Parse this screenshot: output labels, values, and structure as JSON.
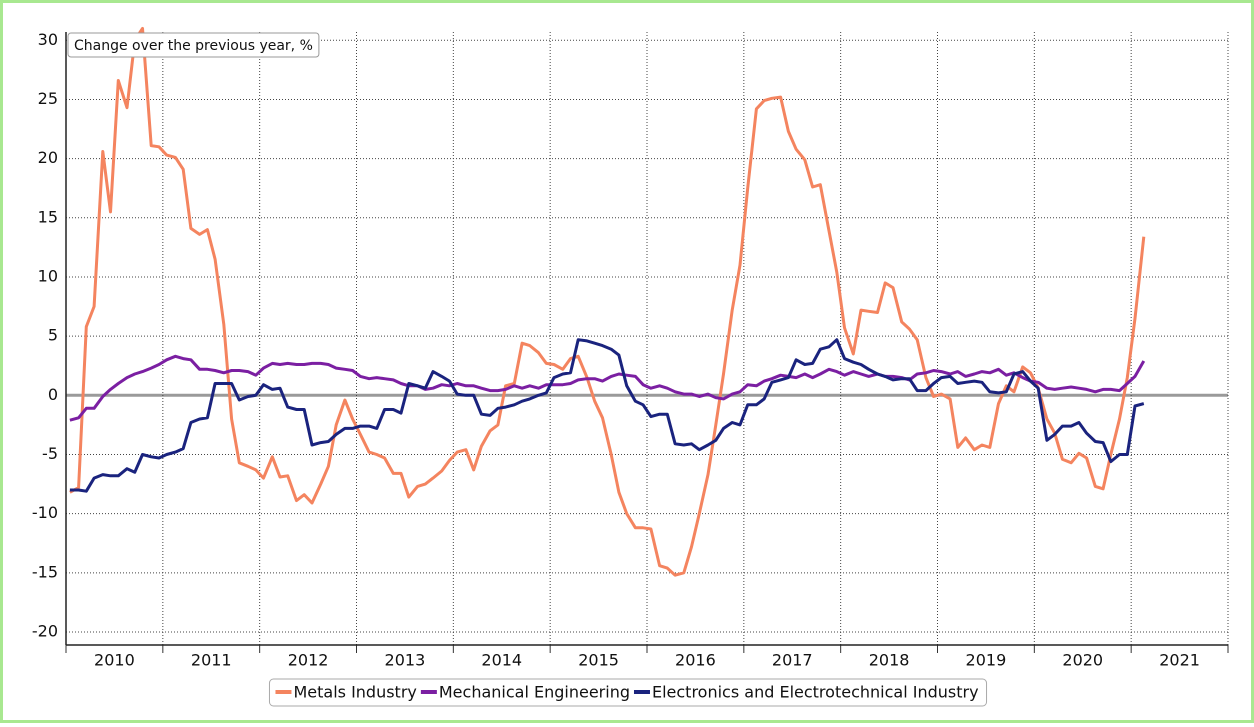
{
  "chart_data": {
    "type": "line",
    "annotation": "Change over the previous year, %",
    "categories": [
      "2010",
      "2011",
      "2012",
      "2013",
      "2014",
      "2015",
      "2016",
      "2017",
      "2018",
      "2019",
      "2020",
      "2021"
    ],
    "xlim": [
      2010,
      2022
    ],
    "xticks": [
      2010,
      2011,
      2012,
      2013,
      2014,
      2015,
      2016,
      2017,
      2018,
      2019,
      2020,
      2021,
      2022
    ],
    "ylim": [
      -21.1,
      30.7
    ],
    "yticks": [
      -20,
      -15,
      -10,
      -5,
      0,
      5,
      10,
      15,
      20,
      25,
      30
    ],
    "grid": true,
    "legend": "bottom",
    "x": [
      2010.04,
      2010.13,
      2010.21,
      2010.29,
      2010.38,
      2010.46,
      2010.54,
      2010.63,
      2010.71,
      2010.79,
      2010.88,
      2010.96,
      2011.04,
      2011.13,
      2011.21,
      2011.29,
      2011.38,
      2011.46,
      2011.54,
      2011.63,
      2011.71,
      2011.79,
      2011.88,
      2011.96,
      2012.04,
      2012.13,
      2012.21,
      2012.29,
      2012.38,
      2012.46,
      2012.54,
      2012.63,
      2012.71,
      2012.79,
      2012.88,
      2012.96,
      2013.04,
      2013.13,
      2013.21,
      2013.29,
      2013.38,
      2013.46,
      2013.54,
      2013.63,
      2013.71,
      2013.79,
      2013.88,
      2013.96,
      2014.04,
      2014.13,
      2014.21,
      2014.29,
      2014.38,
      2014.46,
      2014.54,
      2014.63,
      2014.71,
      2014.79,
      2014.88,
      2014.96,
      2015.04,
      2015.13,
      2015.21,
      2015.29,
      2015.38,
      2015.46,
      2015.54,
      2015.63,
      2015.71,
      2015.79,
      2015.88,
      2015.96,
      2016.04,
      2016.13,
      2016.21,
      2016.29,
      2016.38,
      2016.46,
      2016.54,
      2016.63,
      2016.71,
      2016.79,
      2016.88,
      2016.96,
      2017.04,
      2017.13,
      2017.21,
      2017.29,
      2017.38,
      2017.46,
      2017.54,
      2017.63,
      2017.71,
      2017.79,
      2017.88,
      2017.96,
      2018.04,
      2018.13,
      2018.21,
      2018.29,
      2018.38,
      2018.46,
      2018.54,
      2018.63,
      2018.71,
      2018.79,
      2018.88,
      2018.96,
      2019.04,
      2019.13,
      2019.21,
      2019.29,
      2019.38,
      2019.46,
      2019.54,
      2019.63,
      2019.71,
      2019.79,
      2019.88,
      2019.96,
      2020.04,
      2020.13,
      2020.21,
      2020.29,
      2020.38,
      2020.46,
      2020.54,
      2020.63,
      2020.71,
      2020.79,
      2020.88,
      2020.96,
      2021.04,
      2021.13
    ],
    "series": [
      {
        "name": "Metals Industry",
        "color": "#f4845f",
        "values": [
          -8.2,
          -7.8,
          5.8,
          7.5,
          20.6,
          15.5,
          26.6,
          24.3,
          30,
          31,
          21.1,
          21.0,
          20.3,
          20.1,
          19.1,
          14.1,
          13.6,
          14.0,
          11.5,
          6.0,
          -2.0,
          -5.7,
          -6.0,
          -6.3,
          -7.0,
          -5.2,
          -6.9,
          -6.8,
          -8.9,
          -8.4,
          -9.1,
          -7.5,
          -6.0,
          -2.5,
          -0.4,
          -2.0,
          -3.3,
          -4.8,
          -5.0,
          -5.3,
          -6.6,
          -6.6,
          -8.6,
          -7.7,
          -7.5,
          -7.0,
          -6.4,
          -5.5,
          -4.8,
          -4.6,
          -6.3,
          -4.3,
          -3.0,
          -2.5,
          0.8,
          1.0,
          4.4,
          4.2,
          3.6,
          2.7,
          2.6,
          2.2,
          3.1,
          3.3,
          1.5,
          -0.5,
          -1.9,
          -5.0,
          -8.2,
          -10.0,
          -11.2,
          -11.2,
          -11.3,
          -14.4,
          -14.6,
          -15.2,
          -15.0,
          -12.8,
          -10.0,
          -6.7,
          -2.5,
          1.8,
          7.2,
          11.0,
          17.5,
          24.2,
          24.9,
          25.1,
          25.2,
          22.3,
          20.8,
          19.9,
          17.6,
          17.8,
          13.9,
          10.4,
          5.7,
          3.5,
          7.2,
          7.1,
          7.0,
          9.5,
          9.1,
          6.2,
          5.6,
          4.7,
          1.5,
          -0.1,
          0.1,
          -0.3,
          -4.4,
          -3.6,
          -4.6,
          -4.2,
          -4.4,
          -0.7,
          0.8,
          0.3,
          2.4,
          1.9,
          0.6,
          -2.0,
          -3.2,
          -5.4,
          -5.7,
          -4.9,
          -5.3,
          -7.7,
          -7.9,
          -5.0,
          -2.0,
          1.5,
          6.5,
          13.4
        ]
      },
      {
        "name": "Mechanical Engineering",
        "color": "#7b1fa2",
        "values": [
          -2.1,
          -1.9,
          -1.1,
          -1.1,
          -0.1,
          0.5,
          1.0,
          1.5,
          1.8,
          2.0,
          2.3,
          2.6,
          3.0,
          3.3,
          3.1,
          3.0,
          2.2,
          2.2,
          2.1,
          1.9,
          2.1,
          2.1,
          2.0,
          1.7,
          2.3,
          2.7,
          2.6,
          2.7,
          2.6,
          2.6,
          2.7,
          2.7,
          2.6,
          2.3,
          2.2,
          2.1,
          1.6,
          1.4,
          1.5,
          1.4,
          1.3,
          1.0,
          0.8,
          0.8,
          0.5,
          0.6,
          0.9,
          0.8,
          1.0,
          0.8,
          0.8,
          0.6,
          0.4,
          0.4,
          0.5,
          0.8,
          0.6,
          0.8,
          0.6,
          0.9,
          0.9,
          0.9,
          1.0,
          1.3,
          1.4,
          1.4,
          1.2,
          1.6,
          1.8,
          1.7,
          1.6,
          0.9,
          0.6,
          0.8,
          0.6,
          0.3,
          0.1,
          0.1,
          -0.1,
          0.1,
          -0.2,
          -0.3,
          0.1,
          0.3,
          0.9,
          0.8,
          1.2,
          1.4,
          1.7,
          1.6,
          1.5,
          1.8,
          1.5,
          1.8,
          2.2,
          2.0,
          1.7,
          2.0,
          1.8,
          1.6,
          1.8,
          1.6,
          1.6,
          1.5,
          1.3,
          1.8,
          1.9,
          2.1,
          2.0,
          1.8,
          2.0,
          1.6,
          1.8,
          2.0,
          1.9,
          2.2,
          1.7,
          1.9,
          1.5,
          1.2,
          1.1,
          0.6,
          0.5,
          0.6,
          0.7,
          0.6,
          0.5,
          0.3,
          0.5,
          0.5,
          0.4,
          1.0,
          1.6,
          2.9
        ]
      },
      {
        "name": "Electronics and Electrotechnical Industry",
        "color": "#1a237e",
        "values": [
          -8.0,
          -8.0,
          -8.1,
          -7.0,
          -6.7,
          -6.8,
          -6.8,
          -6.2,
          -6.5,
          -5.0,
          -5.2,
          -5.3,
          -5.0,
          -4.8,
          -4.5,
          -2.3,
          -2.0,
          -1.9,
          1.0,
          1.0,
          1.0,
          -0.4,
          -0.1,
          0.0,
          0.9,
          0.5,
          0.6,
          -1.0,
          -1.2,
          -1.2,
          -4.2,
          -4.0,
          -3.9,
          -3.3,
          -2.8,
          -2.8,
          -2.6,
          -2.6,
          -2.8,
          -1.2,
          -1.2,
          -1.5,
          1.0,
          0.8,
          0.6,
          2.0,
          1.6,
          1.2,
          0.1,
          0.0,
          0.0,
          -1.6,
          -1.7,
          -1.1,
          -1.0,
          -0.8,
          -0.5,
          -0.3,
          0.0,
          0.2,
          1.5,
          1.8,
          1.9,
          4.7,
          4.6,
          4.4,
          4.2,
          3.9,
          3.4,
          0.8,
          -0.5,
          -0.8,
          -1.8,
          -1.6,
          -1.6,
          -4.1,
          -4.2,
          -4.1,
          -4.6,
          -4.2,
          -3.8,
          -2.8,
          -2.3,
          -2.5,
          -0.8,
          -0.8,
          -0.3,
          1.1,
          1.3,
          1.5,
          3.0,
          2.6,
          2.7,
          3.9,
          4.1,
          4.7,
          3.1,
          2.8,
          2.6,
          2.2,
          1.8,
          1.6,
          1.3,
          1.4,
          1.4,
          0.4,
          0.4,
          1.0,
          1.5,
          1.6,
          1.0,
          1.1,
          1.2,
          1.1,
          0.3,
          0.2,
          0.3,
          1.8,
          2.0,
          1.2,
          0.6,
          -3.8,
          -3.3,
          -2.6,
          -2.6,
          -2.3,
          -3.2,
          -3.9,
          -4.0,
          -5.6,
          -5.0,
          -5.0,
          -0.9,
          -0.7
        ]
      }
    ]
  }
}
